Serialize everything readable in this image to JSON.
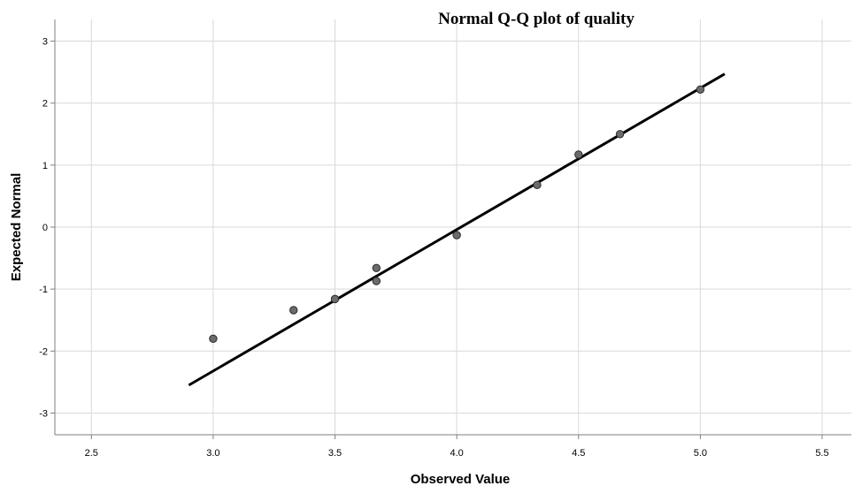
{
  "chart_data": {
    "type": "scatter",
    "title": "Normal Q-Q plot of quality",
    "xlabel": "Observed Value",
    "ylabel": "Expected Normal",
    "xlim": [
      2.35,
      5.62
    ],
    "ylim": [
      -3.35,
      3.35
    ],
    "xticks": [
      "2.5",
      "3.0",
      "3.5",
      "4.0",
      "4.5",
      "5.0",
      "5.5"
    ],
    "yticks": [
      "3",
      "2",
      "1",
      "0",
      "-1",
      "-2",
      "-3"
    ],
    "grid": true,
    "series": [
      {
        "points": [
          {
            "x": 3.0,
            "y": -1.8
          },
          {
            "x": 3.33,
            "y": -1.34
          },
          {
            "x": 3.5,
            "y": -1.16
          },
          {
            "x": 3.67,
            "y": -0.66
          },
          {
            "x": 3.67,
            "y": -0.87
          },
          {
            "x": 4.0,
            "y": -0.13
          },
          {
            "x": 4.33,
            "y": 0.68
          },
          {
            "x": 4.5,
            "y": 1.17
          },
          {
            "x": 4.67,
            "y": 1.5
          },
          {
            "x": 5.0,
            "y": 2.22
          }
        ],
        "color": "#6b6b6b"
      }
    ],
    "reference_line": {
      "x": [
        2.9,
        5.1
      ],
      "y": [
        -2.55,
        2.47
      ],
      "color": "#000000"
    }
  }
}
